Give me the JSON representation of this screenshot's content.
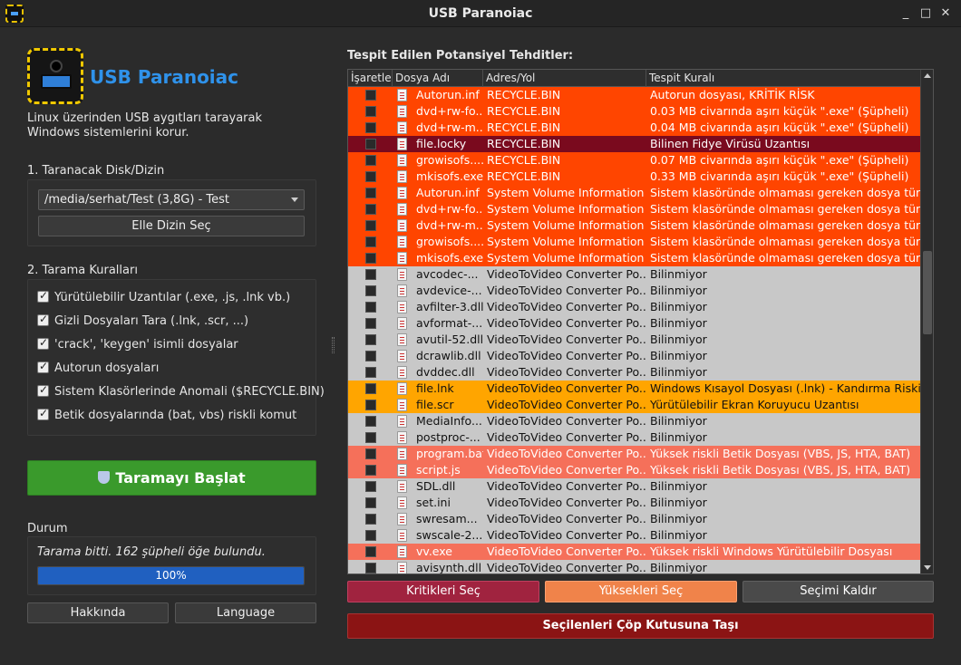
{
  "window": {
    "title": "USB Paranoiac",
    "min_label": "_",
    "max_label": "□",
    "close_label": "✕"
  },
  "app": {
    "name": "USB Paranoiac",
    "description": "Linux üzerinden USB aygıtları tarayarak Windows sistemlerini korur."
  },
  "scan_target": {
    "label": "1. Taranacak Disk/Dizin",
    "selected": "/media/serhat/Test (3,8G) - Test",
    "choose_button": "Elle Dizin Seç"
  },
  "rules": {
    "label": "2. Tarama Kuralları",
    "items": [
      {
        "label": "Yürütülebilir Uzantılar (.exe, .js, .lnk vb.)",
        "checked": true
      },
      {
        "label": "Gizli Dosyaları Tara (.lnk, .scr, ...)",
        "checked": true
      },
      {
        "label": "'crack', 'keygen' isimli dosyalar",
        "checked": true
      },
      {
        "label": "Autorun dosyaları",
        "checked": true
      },
      {
        "label": "Sistem Klasörlerinde Anomali ($RECYCLE.BIN)",
        "checked": true
      },
      {
        "label": "Betik dosyalarında (bat, vbs) riskli komut",
        "checked": true
      }
    ]
  },
  "start_button": "Taramayı Başlat",
  "status": {
    "label": "Durum",
    "message": "Tarama bitti. 162 şüpheli öğe bulundu.",
    "progress_label": "100%",
    "progress": 1.0
  },
  "footer": {
    "about": "Hakkında",
    "language": "Language"
  },
  "threats": {
    "title": "Tespit Edilen Potansiyel Tehditler:",
    "columns": [
      "İşaretle",
      "Dosya Adı",
      "Adres/Yol",
      "Tespit Kuralı"
    ],
    "rows": [
      {
        "name": "Autorun.inf",
        "path": "RECYCLE.BIN",
        "rule": "Autorun dosyası, KRİTİK RİSK",
        "level": "critical"
      },
      {
        "name": "dvd+rw-fo...",
        "path": "RECYCLE.BIN",
        "rule": "0.03 MB civarında aşırı küçük \".exe\" (Şüpheli)",
        "level": "critical"
      },
      {
        "name": "dvd+rw-m...",
        "path": "RECYCLE.BIN",
        "rule": "0.04 MB civarında aşırı küçük \".exe\" (Şüpheli)",
        "level": "critical"
      },
      {
        "name": "file.locky",
        "path": "RECYCLE.BIN",
        "rule": "Bilinen Fidye Virüsü Uzantısı",
        "level": "ransom"
      },
      {
        "name": "growisofs....",
        "path": "RECYCLE.BIN",
        "rule": "0.07 MB civarında aşırı küçük \".exe\" (Şüpheli)",
        "level": "critical"
      },
      {
        "name": "mkisofs.exe",
        "path": "RECYCLE.BIN",
        "rule": "0.33 MB civarında aşırı küçük \".exe\" (Şüpheli)",
        "level": "critical"
      },
      {
        "name": "Autorun.inf",
        "path": "System Volume Information",
        "rule": "Sistem klasöründe olmaması gereken dosya türü",
        "level": "critical"
      },
      {
        "name": "dvd+rw-fo...",
        "path": "System Volume Information",
        "rule": "Sistem klasöründe olmaması gereken dosya türü",
        "level": "critical"
      },
      {
        "name": "dvd+rw-m...",
        "path": "System Volume Information",
        "rule": "Sistem klasöründe olmaması gereken dosya türü",
        "level": "critical"
      },
      {
        "name": "growisofs....",
        "path": "System Volume Information",
        "rule": "Sistem klasöründe olmaması gereken dosya türü",
        "level": "critical"
      },
      {
        "name": "mkisofs.exe",
        "path": "System Volume Information",
        "rule": "Sistem klasöründe olmaması gereken dosya türü",
        "level": "critical"
      },
      {
        "name": "avcodec-...",
        "path": "VideoToVideo Converter Po...",
        "rule": "Bilinmiyor",
        "level": "unknown"
      },
      {
        "name": "avdevice-...",
        "path": "VideoToVideo Converter Po...",
        "rule": "Bilinmiyor",
        "level": "unknown"
      },
      {
        "name": "avfilter-3.dll",
        "path": "VideoToVideo Converter Po...",
        "rule": "Bilinmiyor",
        "level": "unknown"
      },
      {
        "name": "avformat-...",
        "path": "VideoToVideo Converter Po...",
        "rule": "Bilinmiyor",
        "level": "unknown"
      },
      {
        "name": "avutil-52.dll",
        "path": "VideoToVideo Converter Po...",
        "rule": "Bilinmiyor",
        "level": "unknown"
      },
      {
        "name": "dcrawlib.dll",
        "path": "VideoToVideo Converter Po...",
        "rule": "Bilinmiyor",
        "level": "unknown"
      },
      {
        "name": "dvddec.dll",
        "path": "VideoToVideo Converter Po...",
        "rule": "Bilinmiyor",
        "level": "unknown"
      },
      {
        "name": "file.lnk",
        "path": "VideoToVideo Converter Po...",
        "rule": "Windows Kısayol Dosyası (.lnk) - Kandırma Riski",
        "level": "medium"
      },
      {
        "name": "file.scr",
        "path": "VideoToVideo Converter Po...",
        "rule": "Yürütülebilir Ekran Koruyucu Uzantısı",
        "level": "medium"
      },
      {
        "name": "MediaInfo...",
        "path": "VideoToVideo Converter Po...",
        "rule": "Bilinmiyor",
        "level": "unknown"
      },
      {
        "name": "postproc-...",
        "path": "VideoToVideo Converter Po...",
        "rule": "Bilinmiyor",
        "level": "unknown"
      },
      {
        "name": "program.bat",
        "path": "VideoToVideo Converter Po...",
        "rule": "Yüksek riskli Betik Dosyası (VBS, JS, HTA, BAT)",
        "level": "high"
      },
      {
        "name": "script.js",
        "path": "VideoToVideo Converter Po...",
        "rule": "Yüksek riskli Betik Dosyası (VBS, JS, HTA, BAT)",
        "level": "high"
      },
      {
        "name": "SDL.dll",
        "path": "VideoToVideo Converter Po...",
        "rule": "Bilinmiyor",
        "level": "unknown"
      },
      {
        "name": "set.ini",
        "path": "VideoToVideo Converter Po...",
        "rule": "Bilinmiyor",
        "level": "unknown"
      },
      {
        "name": "swresam...",
        "path": "VideoToVideo Converter Po...",
        "rule": "Bilinmiyor",
        "level": "unknown"
      },
      {
        "name": "swscale-2...",
        "path": "VideoToVideo Converter Po...",
        "rule": "Bilinmiyor",
        "level": "unknown"
      },
      {
        "name": "vv.exe",
        "path": "VideoToVideo Converter Po...",
        "rule": "Yüksek riskli Windows Yürütülebilir Dosyası",
        "level": "high"
      },
      {
        "name": "avisynth.dll",
        "path": "VideoToVideo Converter Po...",
        "rule": "Bilinmiyor",
        "level": "unknown"
      }
    ],
    "level_colors": {
      "critical": {
        "bg": "#ff4500",
        "fg": "#ffffff"
      },
      "ransom": {
        "bg": "#7a0a1e",
        "fg": "#ffffff"
      },
      "high": {
        "bg": "#f5705a",
        "fg": "#ffffff"
      },
      "medium": {
        "bg": "#ffa500",
        "fg": "#111111"
      },
      "unknown": {
        "bg": "#c8c8c8",
        "fg": "#111111"
      }
    }
  },
  "actions": {
    "select_critical": "Kritikleri Seç",
    "select_high": "Yüksekleri Seç",
    "clear_selection": "Seçimi Kaldır",
    "move_to_trash": "Seçilenleri Çöp Kutusuna Taşı"
  }
}
